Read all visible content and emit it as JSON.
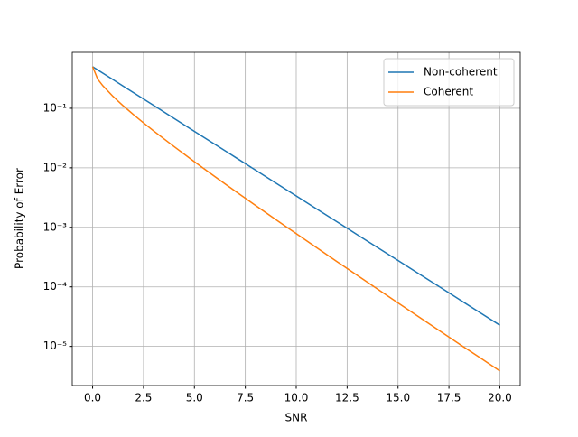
{
  "chart_data": {
    "type": "line",
    "xlabel": "SNR",
    "ylabel": "Probability of Error",
    "x": [
      0,
      0.25,
      0.5,
      1,
      1.5,
      2,
      2.5,
      3,
      4,
      5,
      6,
      7,
      8,
      9,
      10,
      11,
      12,
      13,
      14,
      15,
      16,
      17,
      18,
      19,
      20
    ],
    "series": [
      {
        "name": "Non-coherent",
        "color": "#1f77b4",
        "values": [
          0.5,
          0.4412,
          0.3894,
          0.3033,
          0.2362,
          0.1839,
          0.1433,
          0.1116,
          0.0677,
          0.041,
          0.0249,
          0.0151,
          0.00916,
          0.00555,
          0.00337,
          0.00204,
          0.00124,
          0.000752,
          0.000456,
          0.000277,
          0.000168,
          0.000102,
          6.17e-05,
          3.74e-05,
          2.27e-05
        ]
      },
      {
        "name": "Coherent",
        "color": "#ff7f0e",
        "values": [
          0.5,
          0.3085,
          0.2398,
          0.1587,
          0.1103,
          0.0786,
          0.0569,
          0.0416,
          0.02275,
          0.01267,
          0.00715,
          0.00407,
          0.00234,
          0.00135,
          0.000783,
          0.000456,
          0.000266,
          0.000156,
          9.14e-05,
          5.38e-05,
          3.17e-05,
          1.87e-05,
          1.1e-05,
          6.54e-06,
          3.87e-06
        ]
      }
    ],
    "xlim": [
      -1,
      21
    ],
    "xticks": [
      {
        "value": 0,
        "label": "0.0"
      },
      2.5,
      {
        "value": 5,
        "label": "5.0"
      },
      7.5,
      {
        "value": 10,
        "label": "10.0"
      },
      12.5,
      {
        "value": 15,
        "label": "15.0"
      },
      17.5,
      {
        "value": 20,
        "label": "20.0"
      }
    ],
    "ylim": [
      2.2e-06,
      0.87
    ],
    "yticks": [
      {
        "value": 1e-05,
        "label": "10⁻⁵"
      },
      {
        "value": 0.0001,
        "label": "10⁻⁴"
      },
      {
        "value": 0.001,
        "label": "10⁻³"
      },
      {
        "value": 0.01,
        "label": "10⁻²"
      },
      {
        "value": 0.1,
        "label": "10⁻¹"
      }
    ],
    "yscale": "log",
    "grid": true,
    "legend": "upper right"
  }
}
